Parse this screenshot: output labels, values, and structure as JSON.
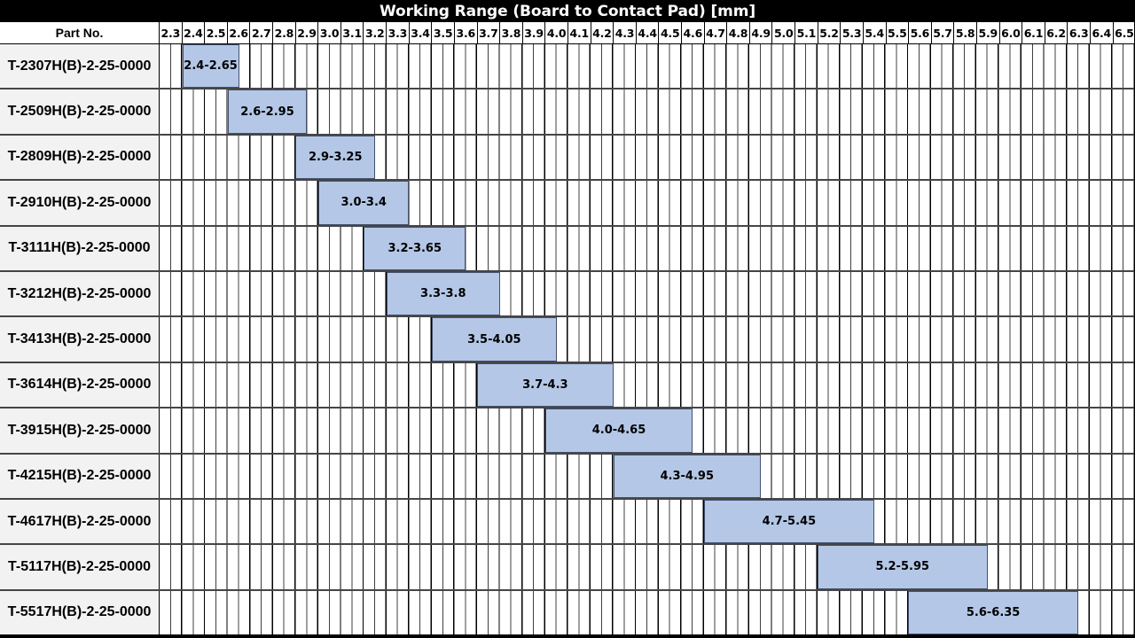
{
  "title": "Working Range (Board to Contact Pad) [mm]",
  "part_header": "Part No.",
  "axis": {
    "min": 2.3,
    "max": 6.6,
    "major_step": 0.1,
    "minor_step": 0.05,
    "tick_labels": [
      "2.3",
      "2.4",
      "2.5",
      "2.6",
      "2.7",
      "2.8",
      "2.9",
      "3.0",
      "3.1",
      "3.2",
      "3.3",
      "3.4",
      "3.5",
      "3.6",
      "3.7",
      "3.8",
      "3.9",
      "4.0",
      "4.1",
      "4.2",
      "4.3",
      "4.4",
      "4.5",
      "4.6",
      "4.7",
      "4.8",
      "4.9",
      "5.0",
      "5.1",
      "5.2",
      "5.3",
      "5.4",
      "5.5",
      "5.6",
      "5.7",
      "5.8",
      "5.9",
      "6.0",
      "6.1",
      "6.2",
      "6.3",
      "6.4",
      "6.5"
    ]
  },
  "chart_data": {
    "type": "bar",
    "variant": "horizontal-range-gantt",
    "title": "Working Range (Board to Contact Pad) [mm]",
    "xlim": [
      2.3,
      6.6
    ],
    "grid": "on",
    "rows": [
      {
        "part": "T-2307H(B)-2-25-0000",
        "start": 2.4,
        "end": 2.65,
        "label": "2.4-2.65"
      },
      {
        "part": "T-2509H(B)-2-25-0000",
        "start": 2.6,
        "end": 2.95,
        "label": "2.6-2.95"
      },
      {
        "part": "T-2809H(B)-2-25-0000",
        "start": 2.9,
        "end": 3.25,
        "label": "2.9-3.25"
      },
      {
        "part": "T-2910H(B)-2-25-0000",
        "start": 3.0,
        "end": 3.4,
        "label": "3.0-3.4"
      },
      {
        "part": "T-3111H(B)-2-25-0000",
        "start": 3.2,
        "end": 3.65,
        "label": "3.2-3.65"
      },
      {
        "part": "T-3212H(B)-2-25-0000",
        "start": 3.3,
        "end": 3.8,
        "label": "3.3-3.8"
      },
      {
        "part": "T-3413H(B)-2-25-0000",
        "start": 3.5,
        "end": 4.05,
        "label": "3.5-4.05"
      },
      {
        "part": "T-3614H(B)-2-25-0000",
        "start": 3.7,
        "end": 4.3,
        "label": "3.7-4.3"
      },
      {
        "part": "T-3915H(B)-2-25-0000",
        "start": 4.0,
        "end": 4.65,
        "label": "4.0-4.65"
      },
      {
        "part": "T-4215H(B)-2-25-0000",
        "start": 4.3,
        "end": 4.95,
        "label": "4.3-4.95"
      },
      {
        "part": "T-4617H(B)-2-25-0000",
        "start": 4.7,
        "end": 5.45,
        "label": "4.7-5.45"
      },
      {
        "part": "T-5117H(B)-2-25-0000",
        "start": 5.2,
        "end": 5.95,
        "label": "5.2-5.95"
      },
      {
        "part": "T-5517H(B)-2-25-0000",
        "start": 5.6,
        "end": 6.35,
        "label": "5.6-6.35"
      }
    ]
  },
  "colors": {
    "bar_fill": "#b4c7e7",
    "bar_border": "#44506a",
    "title_bg": "#000000",
    "title_text": "#ffffff",
    "part_cell_bg": "#f2f2f2",
    "header_bg": "#ffffff",
    "grid_major": "#000000",
    "grid_minor": "#4d4d4d"
  }
}
